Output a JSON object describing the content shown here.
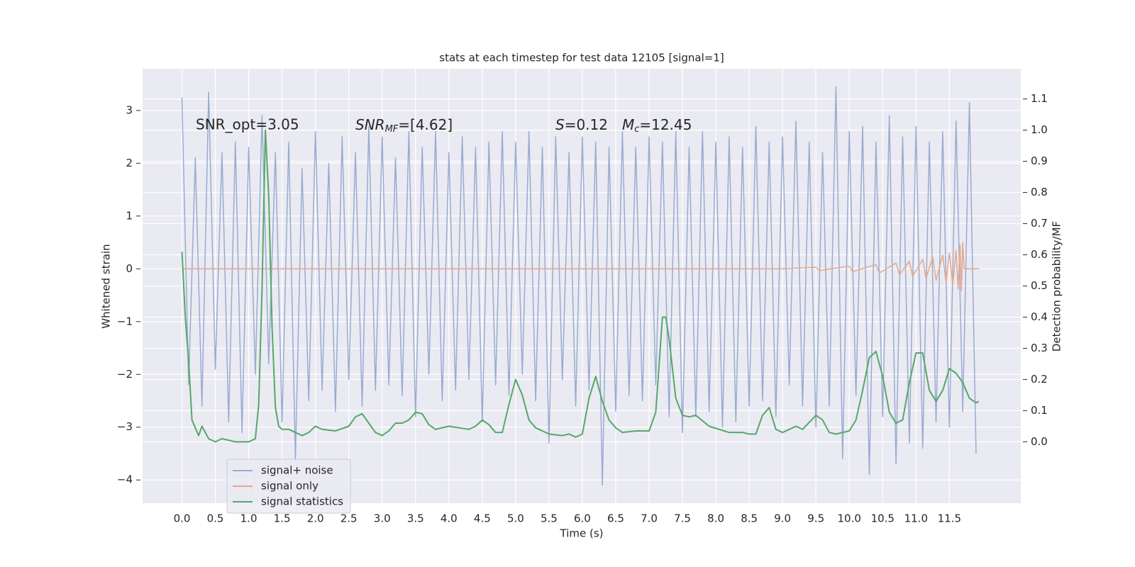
{
  "chart_data": {
    "type": "line",
    "title": "stats at each timestep for test data 12105 [signal=1]",
    "x_label": "Time (s)",
    "y_label": "Whitened strain",
    "y2_label": "Detection probability/MF",
    "annotations": [
      [
        "SNR_opt=3.05"
      ],
      [
        "SNR",
        "MF",
        "=[4.62]"
      ],
      [
        "S",
        "=0.12",
        "M",
        "c",
        "=12.45"
      ]
    ],
    "grid": true,
    "legend": "lower left",
    "xlim": [
      -0.59,
      12.57
    ],
    "ylim": [
      -4.44,
      3.79
    ],
    "y2lim": [
      -0.197,
      1.197
    ],
    "xticks": [
      {
        "value": 0,
        "label": "0.0"
      },
      {
        "value": 0.5,
        "label": "0.5"
      },
      {
        "value": 1,
        "label": "1.0"
      },
      {
        "value": 1.5,
        "label": "1.5"
      },
      {
        "value": 2,
        "label": "2.0"
      },
      {
        "value": 2.5,
        "label": "2.5"
      },
      {
        "value": 3,
        "label": "3.0"
      },
      {
        "value": 3.5,
        "label": "3.5"
      },
      {
        "value": 4,
        "label": "4.0"
      },
      {
        "value": 4.5,
        "label": "4.5"
      },
      {
        "value": 5,
        "label": "5.0"
      },
      {
        "value": 5.5,
        "label": "5.5"
      },
      {
        "value": 6,
        "label": "6.0"
      },
      {
        "value": 6.5,
        "label": "6.5"
      },
      {
        "value": 7,
        "label": "7.0"
      },
      {
        "value": 7.5,
        "label": "7.5"
      },
      {
        "value": 8,
        "label": "8.0"
      },
      {
        "value": 8.5,
        "label": "8.5"
      },
      {
        "value": 9,
        "label": "9.0"
      },
      {
        "value": 9.5,
        "label": "9.5"
      },
      {
        "value": 10,
        "label": "10.0"
      },
      {
        "value": 10.5,
        "label": "10.5"
      },
      {
        "value": 11,
        "label": "11.0"
      },
      {
        "value": 11.5,
        "label": "11.5"
      }
    ],
    "yticks": [
      {
        "value": -4,
        "label": "−4"
      },
      {
        "value": -3,
        "label": "−3"
      },
      {
        "value": -2,
        "label": "−2"
      },
      {
        "value": -1,
        "label": "−1"
      },
      0,
      1,
      2,
      3
    ],
    "y2ticks": [
      {
        "value": 0,
        "label": "0.0"
      },
      {
        "value": 0.1,
        "label": "0.1"
      },
      {
        "value": 0.2,
        "label": "0.2"
      },
      {
        "value": 0.3,
        "label": "0.3"
      },
      {
        "value": 0.4,
        "label": "0.4"
      },
      {
        "value": 0.5,
        "label": "0.5"
      },
      {
        "value": 0.6,
        "label": "0.6"
      },
      {
        "value": 0.7,
        "label": "0.7"
      },
      {
        "value": 0.8,
        "label": "0.8"
      },
      {
        "value": 0.9,
        "label": "0.9"
      },
      {
        "value": 1,
        "label": "1.0"
      },
      {
        "value": 1.1,
        "label": "1.1"
      }
    ],
    "series": [
      {
        "name": "signal+ noise",
        "color": "#9aabd1",
        "x": [
          0,
          0.1,
          0.2,
          0.3,
          0.4,
          0.5,
          0.6,
          0.7,
          0.8,
          0.9,
          1,
          1.1,
          1.2,
          1.3,
          1.4,
          1.5,
          1.6,
          1.7,
          1.8,
          1.9,
          2,
          2.1,
          2.2,
          2.3,
          2.4,
          2.5,
          2.6,
          2.7,
          2.8,
          2.9,
          3,
          3.1,
          3.2,
          3.3,
          3.4,
          3.5,
          3.6,
          3.7,
          3.8,
          3.9,
          4,
          4.1,
          4.2,
          4.3,
          4.4,
          4.5,
          4.6,
          4.7,
          4.8,
          4.9,
          5,
          5.1,
          5.2,
          5.3,
          5.4,
          5.5,
          5.6,
          5.7,
          5.8,
          5.9,
          6,
          6.1,
          6.2,
          6.3,
          6.4,
          6.5,
          6.6,
          6.7,
          6.8,
          6.9,
          7,
          7.1,
          7.2,
          7.3,
          7.4,
          7.5,
          7.6,
          7.7,
          7.8,
          7.9,
          8,
          8.1,
          8.2,
          8.3,
          8.4,
          8.5,
          8.6,
          8.7,
          8.8,
          8.9,
          9,
          9.1,
          9.2,
          9.3,
          9.4,
          9.5,
          9.6,
          9.7,
          9.8,
          9.9,
          10,
          10.1,
          10.2,
          10.3,
          10.4,
          10.5,
          10.6,
          10.7,
          10.8,
          10.9,
          11,
          11.1,
          11.2,
          11.3,
          11.4,
          11.5,
          11.6,
          11.7,
          11.8,
          11.9
        ],
        "values": [
          3.25,
          -2.2,
          2.1,
          -2.6,
          3.35,
          -1.9,
          2.2,
          -2.9,
          2.4,
          -3.1,
          2.3,
          -2.0,
          2.9,
          -1.8,
          2.2,
          -2.9,
          2.4,
          -3.6,
          1.9,
          -2.5,
          2.6,
          -2.3,
          2.0,
          -2.7,
          2.5,
          -2.1,
          2.2,
          -2.6,
          2.7,
          -2.3,
          2.5,
          -2.2,
          2.1,
          -2.4,
          2.6,
          -2.8,
          2.3,
          -2.0,
          2.6,
          -2.5,
          2.2,
          -2.3,
          2.5,
          -2.1,
          2.3,
          -2.9,
          2.4,
          -2.2,
          2.6,
          -2.4,
          2.4,
          -2.0,
          2.6,
          -2.5,
          2.3,
          -3.3,
          2.5,
          -2.1,
          2.2,
          -2.6,
          2.5,
          -2.3,
          2.4,
          -4.1,
          2.3,
          -2.7,
          2.6,
          -2.4,
          2.3,
          -2.5,
          2.5,
          -2.2,
          2.4,
          -2.8,
          2.6,
          -3.1,
          2.3,
          -2.8,
          2.6,
          -2.7,
          2.4,
          -3.0,
          2.5,
          -2.9,
          2.3,
          -2.6,
          2.7,
          -2.5,
          2.4,
          -2.8,
          2.5,
          -2.2,
          2.8,
          -2.6,
          2.4,
          -3.0,
          2.2,
          -2.6,
          3.45,
          -3.6,
          2.6,
          -2.4,
          2.7,
          -3.9,
          2.4,
          -2.8,
          2.9,
          -3.7,
          2.5,
          -3.3,
          2.7,
          -3.4,
          2.4,
          -2.9,
          2.6,
          -3.0,
          2.8,
          -2.7,
          3.15,
          -3.5
        ]
      },
      {
        "name": "signal only",
        "color": "#e5a88a",
        "x": [
          0,
          9,
          9.5,
          9.55,
          10,
          10.05,
          10.4,
          10.45,
          10.7,
          10.75,
          10.9,
          10.95,
          11.1,
          11.15,
          11.25,
          11.3,
          11.4,
          11.45,
          11.5,
          11.55,
          11.6,
          11.63,
          11.66,
          11.68,
          11.7,
          11.72,
          11.95
        ],
        "values": [
          0,
          0,
          0.03,
          -0.03,
          0.05,
          -0.05,
          0.08,
          -0.08,
          0.11,
          -0.11,
          0.14,
          -0.14,
          0.18,
          -0.18,
          0.22,
          -0.22,
          0.26,
          -0.26,
          0.3,
          -0.3,
          0.35,
          -0.38,
          0.45,
          -0.42,
          0.5,
          0,
          0
        ]
      },
      {
        "name": "signal statistics",
        "color": "#55a868",
        "axis": "y2",
        "x": [
          0,
          0.05,
          0.1,
          0.15,
          0.25,
          0.3,
          0.4,
          0.5,
          0.6,
          0.8,
          1,
          1.1,
          1.15,
          1.2,
          1.25,
          1.3,
          1.35,
          1.4,
          1.45,
          1.5,
          1.6,
          1.7,
          1.8,
          1.9,
          2,
          2.1,
          2.3,
          2.5,
          2.6,
          2.7,
          2.8,
          2.9,
          3,
          3.1,
          3.2,
          3.3,
          3.4,
          3.5,
          3.6,
          3.7,
          3.8,
          4,
          4.3,
          4.4,
          4.5,
          4.6,
          4.7,
          4.8,
          4.9,
          5,
          5.1,
          5.2,
          5.3,
          5.5,
          5.7,
          5.8,
          5.9,
          6,
          6.1,
          6.2,
          6.3,
          6.4,
          6.5,
          6.6,
          6.8,
          7,
          7.1,
          7.2,
          7.25,
          7.3,
          7.4,
          7.5,
          7.6,
          7.7,
          7.9,
          8.2,
          8.4,
          8.5,
          8.6,
          8.7,
          8.8,
          8.9,
          9,
          9.2,
          9.3,
          9.5,
          9.6,
          9.7,
          9.8,
          10,
          10.1,
          10.2,
          10.3,
          10.4,
          10.5,
          10.6,
          10.7,
          10.8,
          10.9,
          11,
          11.1,
          11.2,
          11.3,
          11.4,
          11.5,
          11.6,
          11.7,
          11.8,
          11.9,
          11.94
        ],
        "values": [
          0.61,
          0.4,
          0.26,
          0.07,
          0.02,
          0.05,
          0.01,
          0,
          0.01,
          0,
          0,
          0.01,
          0.12,
          0.49,
          1.0,
          0.79,
          0.37,
          0.11,
          0.05,
          0.04,
          0.04,
          0.03,
          0.02,
          0.03,
          0.05,
          0.04,
          0.035,
          0.05,
          0.08,
          0.09,
          0.06,
          0.03,
          0.02,
          0.035,
          0.06,
          0.06,
          0.07,
          0.095,
          0.09,
          0.055,
          0.04,
          0.05,
          0.04,
          0.05,
          0.07,
          0.055,
          0.03,
          0.03,
          0.12,
          0.2,
          0.15,
          0.07,
          0.045,
          0.025,
          0.02,
          0.025,
          0.015,
          0.025,
          0.14,
          0.21,
          0.13,
          0.07,
          0.045,
          0.03,
          0.035,
          0.035,
          0.095,
          0.4,
          0.4,
          0.33,
          0.14,
          0.085,
          0.08,
          0.085,
          0.05,
          0.03,
          0.03,
          0.025,
          0.025,
          0.085,
          0.11,
          0.04,
          0.03,
          0.05,
          0.04,
          0.085,
          0.07,
          0.03,
          0.025,
          0.035,
          0.07,
          0.165,
          0.27,
          0.29,
          0.21,
          0.095,
          0.06,
          0.07,
          0.19,
          0.285,
          0.285,
          0.165,
          0.13,
          0.165,
          0.235,
          0.22,
          0.19,
          0.14,
          0.125,
          0.13
        ]
      }
    ]
  }
}
